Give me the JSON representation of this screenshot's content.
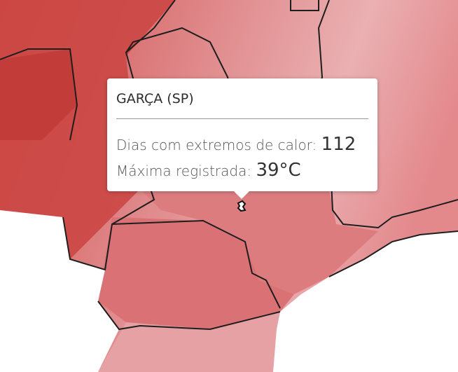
{
  "tooltip": {
    "title": "GARÇA (SP)",
    "rows": [
      {
        "label": "Dias com extremos de calor: ",
        "value": "112"
      },
      {
        "label": "Máxima registrada: ",
        "value": "39°C"
      }
    ]
  },
  "colors": {
    "low": "#f1c3c5",
    "mid": "#df7d80",
    "high": "#c8403d",
    "border": "#1e1e1e",
    "outside": "#ffffff"
  }
}
